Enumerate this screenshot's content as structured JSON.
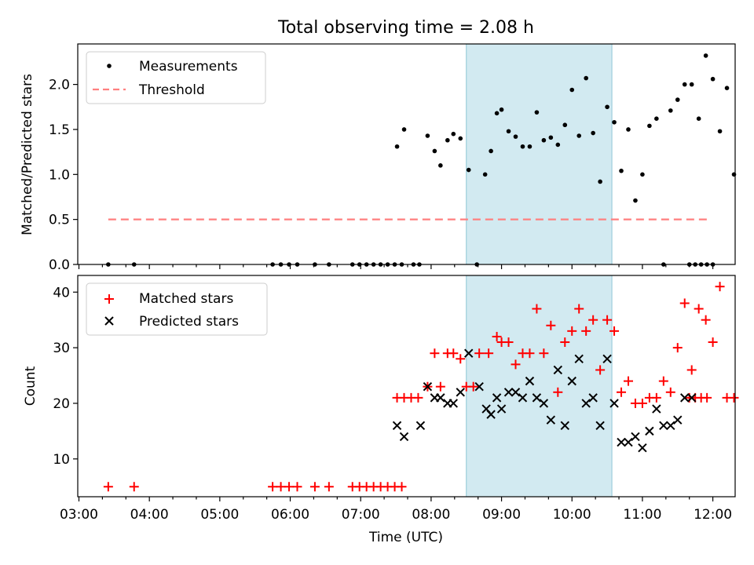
{
  "chart_data": [
    {
      "type": "scatter",
      "title": "Total observing time = 2.08 h",
      "ylabel": "Matched/Predicted stars",
      "ylim": [
        0,
        2.45
      ],
      "xlim": [
        "02:59",
        "12:19"
      ],
      "yticks": [
        0.0,
        0.5,
        1.0,
        1.5,
        2.0
      ],
      "ytick_labels": [
        "0.0",
        "0.5",
        "1.0",
        "1.5",
        "2.0"
      ],
      "highlight_span": {
        "start": "08:30",
        "end": "10:34",
        "color": "#add8e6"
      },
      "legend": {
        "placement": "top-left",
        "entries": [
          "Measurements",
          "Threshold"
        ]
      },
      "series": [
        {
          "name": "Measurements",
          "color": "#000000",
          "marker": "dot",
          "points": [
            [
              "03:25",
              0
            ],
            [
              "03:47",
              0
            ],
            [
              "05:45",
              0
            ],
            [
              "05:52",
              0
            ],
            [
              "05:59",
              0
            ],
            [
              "06:06",
              0
            ],
            [
              "06:21",
              0
            ],
            [
              "06:33",
              0
            ],
            [
              "06:53",
              0
            ],
            [
              "06:59",
              0
            ],
            [
              "07:05",
              0
            ],
            [
              "07:11",
              0
            ],
            [
              "07:17",
              0
            ],
            [
              "07:23",
              0
            ],
            [
              "07:29",
              0
            ],
            [
              "07:35",
              0
            ],
            [
              "07:31",
              1.31
            ],
            [
              "07:37",
              1.5
            ],
            [
              "07:45",
              0
            ],
            [
              "07:50",
              0
            ],
            [
              "07:57",
              1.43
            ],
            [
              "08:03",
              1.26
            ],
            [
              "08:08",
              1.1
            ],
            [
              "08:14",
              1.38
            ],
            [
              "08:19",
              1.45
            ],
            [
              "08:25",
              1.4
            ],
            [
              "08:32",
              1.05
            ],
            [
              "08:39",
              0
            ],
            [
              "08:46",
              1.0
            ],
            [
              "08:51",
              1.26
            ],
            [
              "08:56",
              1.68
            ],
            [
              "09:00",
              1.72
            ],
            [
              "09:06",
              1.48
            ],
            [
              "09:12",
              1.42
            ],
            [
              "09:18",
              1.31
            ],
            [
              "09:24",
              1.31
            ],
            [
              "09:30",
              1.69
            ],
            [
              "09:36",
              1.38
            ],
            [
              "09:42",
              1.41
            ],
            [
              "09:48",
              1.33
            ],
            [
              "09:54",
              1.55
            ],
            [
              "10:00",
              1.94
            ],
            [
              "10:06",
              1.43
            ],
            [
              "10:12",
              2.07
            ],
            [
              "10:18",
              1.46
            ],
            [
              "10:24",
              0.92
            ],
            [
              "10:30",
              1.75
            ],
            [
              "10:36",
              1.58
            ],
            [
              "10:42",
              1.04
            ],
            [
              "10:48",
              1.5
            ],
            [
              "10:54",
              0.71
            ],
            [
              "11:00",
              1.0
            ],
            [
              "11:06",
              1.54
            ],
            [
              "11:12",
              1.62
            ],
            [
              "11:18",
              0
            ],
            [
              "11:24",
              1.71
            ],
            [
              "11:30",
              1.83
            ],
            [
              "11:36",
              2.0
            ],
            [
              "11:42",
              2.0
            ],
            [
              "11:48",
              1.62
            ],
            [
              "11:54",
              2.32
            ],
            [
              "12:00",
              2.06
            ],
            [
              "12:06",
              1.48
            ],
            [
              "12:12",
              1.96
            ],
            [
              "12:18",
              1.0
            ],
            [
              "11:40",
              0
            ],
            [
              "11:45",
              0
            ],
            [
              "11:50",
              0
            ],
            [
              "11:55",
              0
            ],
            [
              "12:00",
              0
            ]
          ]
        },
        {
          "name": "Threshold",
          "color": "#ff7f7f",
          "style": "dashed",
          "y": 0.5,
          "x_range": [
            "03:25",
            "11:55"
          ]
        }
      ]
    },
    {
      "type": "scatter",
      "xlabel": "Time (UTC)",
      "ylabel": "Count",
      "ylim": [
        3.2,
        43
      ],
      "yticks": [
        10,
        20,
        30,
        40
      ],
      "ytick_labels": [
        "10",
        "20",
        "30",
        "40"
      ],
      "xticks": [
        "03:00",
        "04:00",
        "05:00",
        "06:00",
        "07:00",
        "08:00",
        "09:00",
        "10:00",
        "11:00",
        "12:00"
      ],
      "highlight_span": {
        "start": "08:30",
        "end": "10:34",
        "color": "#add8e6"
      },
      "legend": {
        "placement": "top-left",
        "entries": [
          "Matched stars",
          "Predicted stars"
        ]
      },
      "series": [
        {
          "name": "Matched stars",
          "color": "#ff0000",
          "marker": "plus",
          "points": [
            [
              "03:25",
              5
            ],
            [
              "03:47",
              5
            ],
            [
              "05:45",
              5
            ],
            [
              "05:52",
              5
            ],
            [
              "05:59",
              5
            ],
            [
              "06:06",
              5
            ],
            [
              "06:21",
              5
            ],
            [
              "06:33",
              5
            ],
            [
              "06:53",
              5
            ],
            [
              "06:59",
              5
            ],
            [
              "07:05",
              5
            ],
            [
              "07:11",
              5
            ],
            [
              "07:17",
              5
            ],
            [
              "07:23",
              5
            ],
            [
              "07:29",
              5
            ],
            [
              "07:35",
              5
            ],
            [
              "07:31",
              21
            ],
            [
              "07:37",
              21
            ],
            [
              "07:43",
              21
            ],
            [
              "07:49",
              21
            ],
            [
              "07:57",
              23
            ],
            [
              "08:03",
              29
            ],
            [
              "08:08",
              23
            ],
            [
              "08:14",
              29
            ],
            [
              "08:19",
              29
            ],
            [
              "08:25",
              28
            ],
            [
              "08:30",
              23
            ],
            [
              "08:36",
              23
            ],
            [
              "08:41",
              29
            ],
            [
              "08:49",
              29
            ],
            [
              "08:56",
              32
            ],
            [
              "09:00",
              31
            ],
            [
              "09:06",
              31
            ],
            [
              "09:12",
              27
            ],
            [
              "09:18",
              29
            ],
            [
              "09:24",
              29
            ],
            [
              "09:30",
              37
            ],
            [
              "09:36",
              29
            ],
            [
              "09:42",
              34
            ],
            [
              "09:48",
              22
            ],
            [
              "09:54",
              31
            ],
            [
              "10:00",
              33
            ],
            [
              "10:06",
              37
            ],
            [
              "10:12",
              33
            ],
            [
              "10:18",
              35
            ],
            [
              "10:24",
              26
            ],
            [
              "10:30",
              35
            ],
            [
              "10:36",
              33
            ],
            [
              "10:42",
              22
            ],
            [
              "10:48",
              24
            ],
            [
              "10:54",
              20
            ],
            [
              "11:00",
              20
            ],
            [
              "11:06",
              21
            ],
            [
              "11:12",
              21
            ],
            [
              "11:18",
              24
            ],
            [
              "11:24",
              22
            ],
            [
              "11:30",
              30
            ],
            [
              "11:36",
              38
            ],
            [
              "11:42",
              26
            ],
            [
              "11:48",
              37
            ],
            [
              "11:54",
              35
            ],
            [
              "12:00",
              31
            ],
            [
              "12:06",
              41
            ],
            [
              "12:12",
              21
            ],
            [
              "12:18",
              21
            ],
            [
              "11:40",
              21
            ],
            [
              "11:45",
              21
            ],
            [
              "11:50",
              21
            ],
            [
              "11:55",
              21
            ]
          ]
        },
        {
          "name": "Predicted stars",
          "color": "#000000",
          "marker": "x",
          "points": [
            [
              "07:31",
              16
            ],
            [
              "07:37",
              14
            ],
            [
              "07:51",
              16
            ],
            [
              "07:57",
              23
            ],
            [
              "08:03",
              21
            ],
            [
              "08:08",
              21
            ],
            [
              "08:14",
              20
            ],
            [
              "08:19",
              20
            ],
            [
              "08:25",
              22
            ],
            [
              "08:32",
              29
            ],
            [
              "08:41",
              23
            ],
            [
              "08:47",
              19
            ],
            [
              "08:51",
              18
            ],
            [
              "08:56",
              21
            ],
            [
              "09:00",
              19
            ],
            [
              "09:06",
              22
            ],
            [
              "09:12",
              22
            ],
            [
              "09:18",
              21
            ],
            [
              "09:24",
              24
            ],
            [
              "09:30",
              21
            ],
            [
              "09:36",
              20
            ],
            [
              "09:42",
              17
            ],
            [
              "09:48",
              26
            ],
            [
              "09:54",
              16
            ],
            [
              "10:00",
              24
            ],
            [
              "10:06",
              28
            ],
            [
              "10:12",
              20
            ],
            [
              "10:18",
              21
            ],
            [
              "10:24",
              16
            ],
            [
              "10:30",
              28
            ],
            [
              "10:36",
              20
            ],
            [
              "10:42",
              13
            ],
            [
              "10:48",
              13
            ],
            [
              "10:54",
              14
            ],
            [
              "11:00",
              12
            ],
            [
              "11:06",
              15
            ],
            [
              "11:12",
              19
            ],
            [
              "11:18",
              16
            ],
            [
              "11:24",
              16
            ],
            [
              "11:30",
              17
            ],
            [
              "11:36",
              21
            ],
            [
              "11:42",
              21
            ]
          ]
        }
      ]
    }
  ]
}
